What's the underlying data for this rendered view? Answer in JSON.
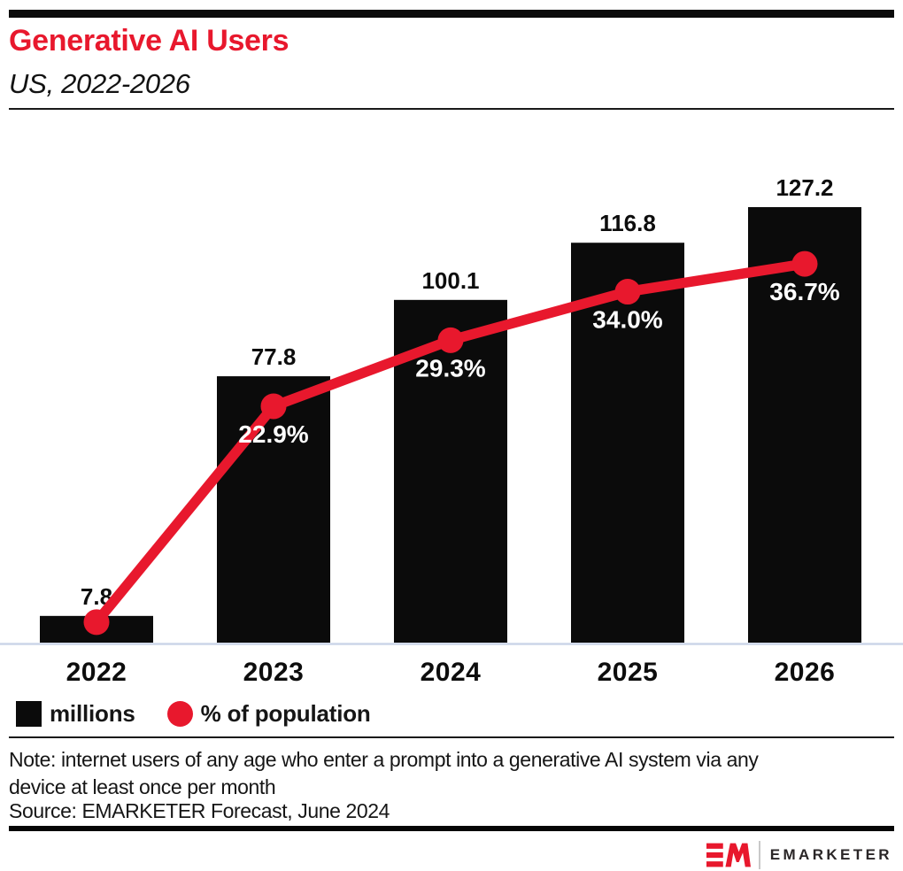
{
  "header": {
    "title": "Generative AI Users",
    "subtitle": "US, 2022-2026"
  },
  "chart_data": {
    "type": "bar",
    "title": "Generative AI Users",
    "subtitle": "US, 2022-2026",
    "categories": [
      "2022",
      "2023",
      "2024",
      "2025",
      "2026"
    ],
    "series": [
      {
        "name": "millions",
        "chart": "bar",
        "color": "#0b0b0b",
        "values": [
          7.8,
          77.8,
          100.1,
          116.8,
          127.2
        ],
        "labels": [
          "7.8",
          "77.8",
          "100.1",
          "116.8",
          "127.2"
        ]
      },
      {
        "name": "% of population",
        "chart": "line",
        "color": "#e8182d",
        "values": [
          null,
          22.9,
          29.3,
          34.0,
          36.7
        ],
        "labels": [
          "",
          "22.9%",
          "29.3%",
          "34.0%",
          "36.7%"
        ]
      }
    ],
    "xlabel": "",
    "ylabel": "",
    "bar_axis_range": [
      0,
      130
    ],
    "line_axis_range": [
      0,
      51
    ],
    "grid": false,
    "legend_position": "bottom",
    "axis_line_color": "#ccd5e8"
  },
  "legend": {
    "items": [
      {
        "label": "millions",
        "swatch": "black-square"
      },
      {
        "label": "% of population",
        "swatch": "red-circle"
      }
    ]
  },
  "notes": {
    "note_line1": "Note: internet users of any age who enter a prompt into a generative AI system via any",
    "note_line2": "device at least once per month",
    "source": "Source: EMARKETER Forecast, June 2024"
  },
  "footer": {
    "brand": "EMARKETER"
  },
  "colors": {
    "accent_red": "#e8182d",
    "bar_black": "#0b0b0b",
    "axis_line": "#ccd5e8"
  }
}
